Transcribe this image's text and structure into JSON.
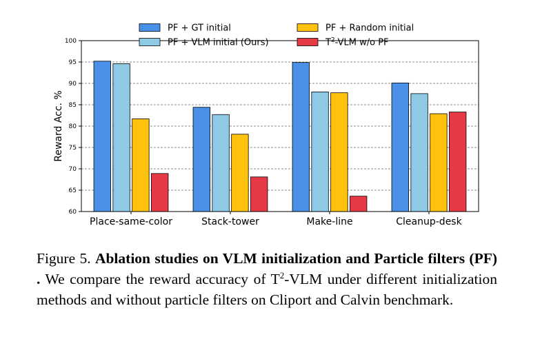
{
  "chart_data": {
    "type": "bar",
    "categories": [
      "Place-same-color",
      "Stack-tower",
      "Make-line",
      "Cleanup-desk"
    ],
    "series": [
      {
        "name": "PF + GT initial",
        "color": "#4a90e8",
        "values": [
          95.2,
          84.4,
          94.9,
          90.1
        ]
      },
      {
        "name": "PF + VLM initial (Ours)",
        "color": "#8ecae6",
        "values": [
          94.6,
          82.7,
          88.0,
          87.6
        ]
      },
      {
        "name": "PF + Random initial",
        "color": "#ffc20e",
        "values": [
          81.7,
          78.1,
          87.8,
          82.9
        ]
      },
      {
        "name": "T²-VLM w/o PF",
        "color": "#e63946",
        "values": [
          68.9,
          68.1,
          63.6,
          83.3
        ]
      }
    ],
    "legend": {
      "items": [
        {
          "pre": "PF + GT initial",
          "sup": "",
          "post": ""
        },
        {
          "pre": "PF + Random initial",
          "sup": "",
          "post": ""
        },
        {
          "pre": "PF + VLM initial (Ours)",
          "sup": "",
          "post": ""
        },
        {
          "pre": "T",
          "sup": "2",
          "post": "-VLM w/o PF"
        }
      ],
      "placement": "top-center"
    },
    "ylabel": "Reward Acc. %",
    "xlabel": "",
    "ylim": [
      60,
      100
    ],
    "yticks": [
      "60",
      "65",
      "70",
      "75",
      "80",
      "85",
      "90",
      "95",
      "100"
    ],
    "grid": "horizontal dashed"
  },
  "caption": {
    "prefix": "Figure 5. ",
    "bold": "Ablation studies on VLM initialization and Particle filters (PF) .",
    "text_before_sup": " We compare the reward accuracy of T",
    "sup": "2",
    "text_after_sup": "-VLM under different initialization methods and without particle filters on Cliport and Calvin benchmark."
  }
}
